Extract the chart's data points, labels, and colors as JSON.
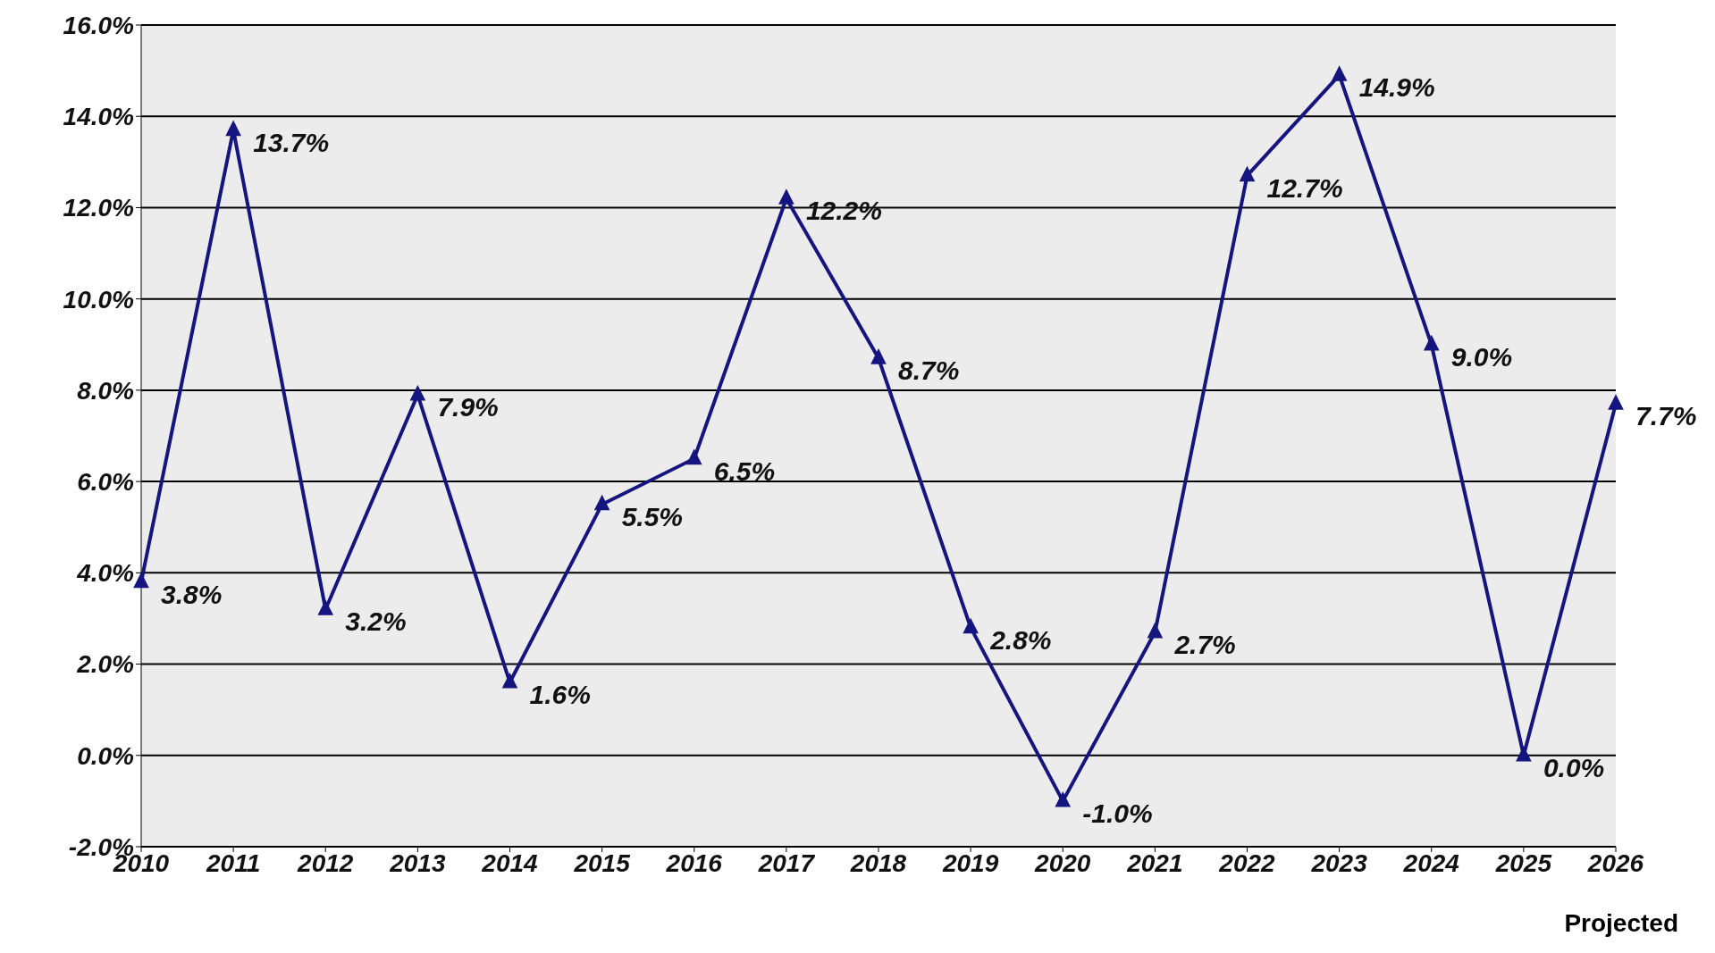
{
  "chart_data": {
    "type": "line",
    "categories": [
      "2010",
      "2011",
      "2012",
      "2013",
      "2014",
      "2015",
      "2016",
      "2017",
      "2018",
      "2019",
      "2020",
      "2021",
      "2022",
      "2023",
      "2024",
      "2025",
      "2026"
    ],
    "values": [
      3.8,
      13.7,
      3.2,
      7.9,
      1.6,
      5.5,
      6.5,
      12.2,
      8.7,
      2.8,
      -1.0,
      2.7,
      12.7,
      14.9,
      9.0,
      0.0,
      7.7
    ],
    "value_labels": [
      "3.8%",
      "13.7%",
      "3.2%",
      "7.9%",
      "1.6%",
      "5.5%",
      "6.5%",
      "12.2%",
      "8.7%",
      "2.8%",
      "-1.0%",
      "2.7%",
      "12.7%",
      "14.9%",
      "9.0%",
      "0.0%",
      "7.7%"
    ],
    "color": "#15157f",
    "ylim": [
      -2,
      16
    ],
    "yticks": [
      {
        "value": -2,
        "label": "-2.0%"
      },
      {
        "value": 0,
        "label": "0.0%"
      },
      {
        "value": 2,
        "label": "2.0%"
      },
      {
        "value": 4,
        "label": "4.0%"
      },
      {
        "value": 6,
        "label": "6.0%"
      },
      {
        "value": 8,
        "label": "8.0%"
      },
      {
        "value": 10,
        "label": "10.0%"
      },
      {
        "value": 12,
        "label": "12.0%"
      },
      {
        "value": 14,
        "label": "14.0%"
      },
      {
        "value": 16,
        "label": "16.0%"
      }
    ],
    "grid": "y",
    "marker": "triangle",
    "line_style": "solid",
    "annotations": [
      "Projected"
    ]
  }
}
